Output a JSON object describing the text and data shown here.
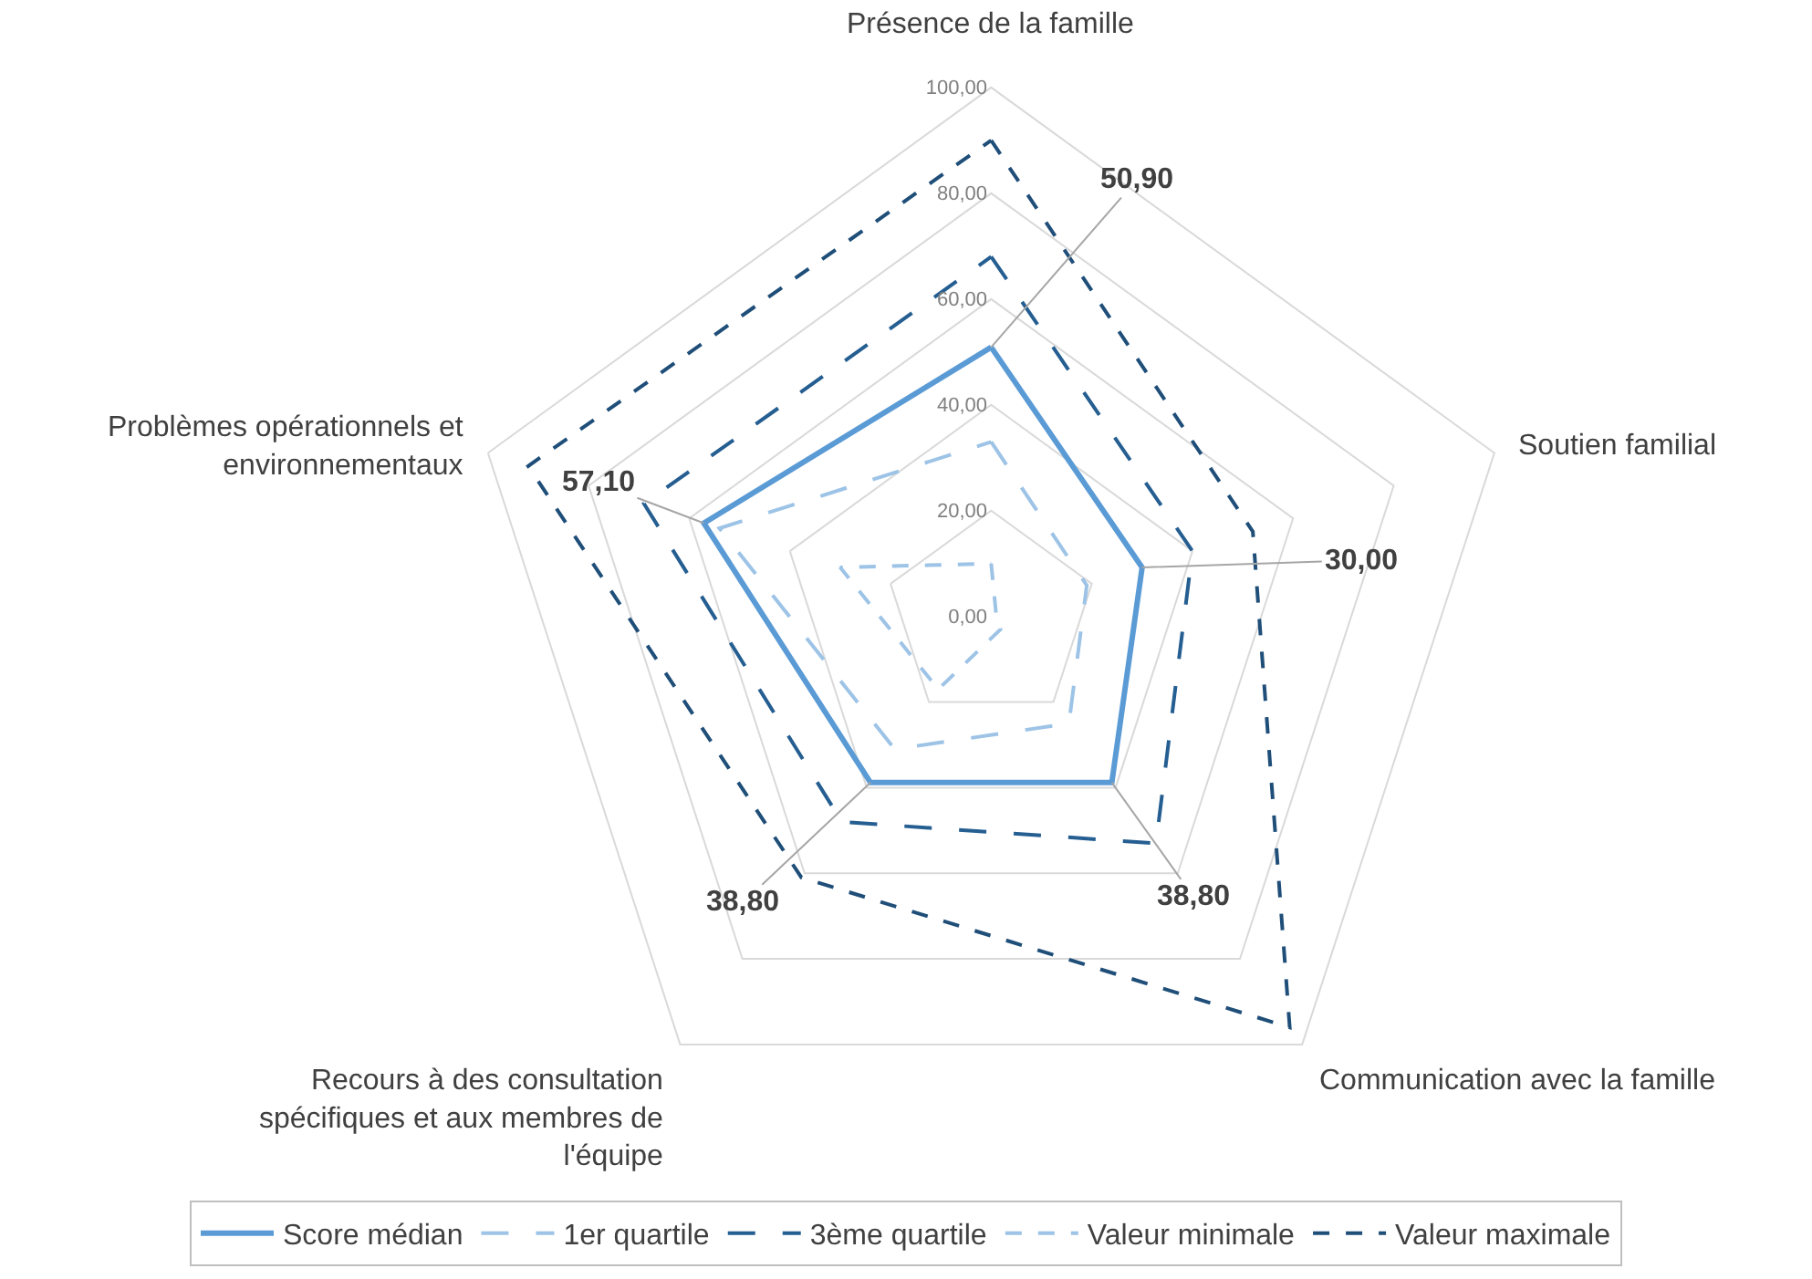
{
  "chart_data": {
    "type": "radar",
    "categories": [
      "Présence de la famille",
      "Soutien familial",
      "Communication avec la famille",
      "Recours à des consultation spécifiques et aux membres de l'équipe",
      "Problèmes opérationnels et environnementaux"
    ],
    "series": [
      {
        "name": "Score médian",
        "color": "#5b9bd5",
        "line_style": "solid",
        "values": [
          50.9,
          30.0,
          38.8,
          38.8,
          57.1
        ],
        "value_labels": [
          "50,90",
          "30,00",
          "38,80",
          "38,80",
          "57,10"
        ]
      },
      {
        "name": "1er quartile",
        "color": "#9dc3e6",
        "line_style": "dashed",
        "values": [
          33,
          19,
          25,
          31,
          54
        ]
      },
      {
        "name": "3ème quartile",
        "color": "#255e91",
        "line_style": "dashed",
        "values": [
          68,
          40,
          53,
          48,
          69
        ]
      },
      {
        "name": "Valeur minimale",
        "color": "#9dc3e6",
        "line_style": "dotted",
        "values": [
          10,
          1,
          3,
          17,
          30
        ]
      },
      {
        "name": "Valeur maximale",
        "color": "#1f4e79",
        "line_style": "dotted",
        "values": [
          90,
          52,
          96,
          61,
          92
        ]
      }
    ],
    "ylim": [
      0,
      100
    ],
    "yticks": [
      {
        "value": 0,
        "label": "0,00"
      },
      {
        "value": 20,
        "label": "20,00"
      },
      {
        "value": 40,
        "label": "40,00"
      },
      {
        "value": 60,
        "label": "60,00"
      },
      {
        "value": 80,
        "label": "80,00"
      },
      {
        "value": 100,
        "label": "100,00"
      }
    ],
    "grid": true,
    "legend": "bottom"
  }
}
